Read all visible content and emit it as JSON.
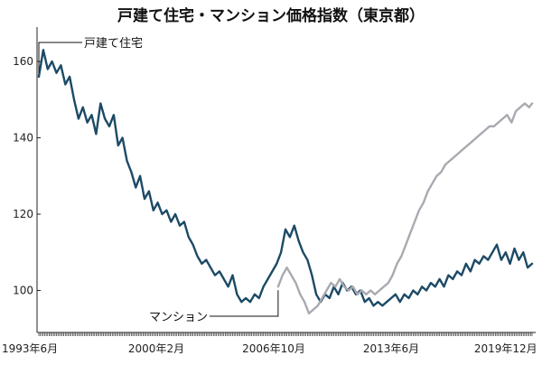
{
  "chart_data": {
    "type": "line",
    "title": "戸建て住宅・マンション価格指数（東京都）",
    "xlabel": "",
    "ylabel": "",
    "x_range": [
      "1993-06",
      "2021-06"
    ],
    "ylim": [
      89,
      169
    ],
    "y_ticks": [
      100,
      120,
      140,
      160
    ],
    "x_tick_labels": [
      {
        "label": "1993年6月",
        "date": "1993-06"
      },
      {
        "label": "2000年2月",
        "date": "2000-02"
      },
      {
        "label": "2006年10月",
        "date": "2006-10"
      },
      {
        "label": "2013年6月",
        "date": "2013-06"
      },
      {
        "label": "2019年12月",
        "date": "2019-12"
      }
    ],
    "grid": false,
    "legend": "inline labels",
    "series": [
      {
        "name": "戸建て住宅",
        "color": "#1c4a66",
        "points": [
          [
            "1993-06",
            156
          ],
          [
            "1993-09",
            163
          ],
          [
            "1993-12",
            158
          ],
          [
            "1994-03",
            160
          ],
          [
            "1994-06",
            157
          ],
          [
            "1994-09",
            159
          ],
          [
            "1994-12",
            154
          ],
          [
            "1995-03",
            156
          ],
          [
            "1995-06",
            150
          ],
          [
            "1995-09",
            145
          ],
          [
            "1995-12",
            148
          ],
          [
            "1996-03",
            144
          ],
          [
            "1996-06",
            146
          ],
          [
            "1996-09",
            141
          ],
          [
            "1996-12",
            149
          ],
          [
            "1997-03",
            145
          ],
          [
            "1997-06",
            143
          ],
          [
            "1997-09",
            146
          ],
          [
            "1997-12",
            138
          ],
          [
            "1998-03",
            140
          ],
          [
            "1998-06",
            134
          ],
          [
            "1998-09",
            131
          ],
          [
            "1998-12",
            127
          ],
          [
            "1999-03",
            130
          ],
          [
            "1999-06",
            124
          ],
          [
            "1999-09",
            126
          ],
          [
            "1999-12",
            121
          ],
          [
            "2000-03",
            123
          ],
          [
            "2000-06",
            120
          ],
          [
            "2000-09",
            121
          ],
          [
            "2000-12",
            118
          ],
          [
            "2001-03",
            120
          ],
          [
            "2001-06",
            117
          ],
          [
            "2001-09",
            118
          ],
          [
            "2001-12",
            114
          ],
          [
            "2002-03",
            112
          ],
          [
            "2002-06",
            109
          ],
          [
            "2002-09",
            107
          ],
          [
            "2002-12",
            108
          ],
          [
            "2003-03",
            106
          ],
          [
            "2003-06",
            104
          ],
          [
            "2003-09",
            105
          ],
          [
            "2003-12",
            103
          ],
          [
            "2004-03",
            101
          ],
          [
            "2004-06",
            104
          ],
          [
            "2004-09",
            99
          ],
          [
            "2004-12",
            97
          ],
          [
            "2005-03",
            98
          ],
          [
            "2005-06",
            97
          ],
          [
            "2005-09",
            99
          ],
          [
            "2005-12",
            98
          ],
          [
            "2006-03",
            101
          ],
          [
            "2006-06",
            103
          ],
          [
            "2006-09",
            105
          ],
          [
            "2006-12",
            107
          ],
          [
            "2007-03",
            110
          ],
          [
            "2007-06",
            116
          ],
          [
            "2007-09",
            114
          ],
          [
            "2007-12",
            117
          ],
          [
            "2008-03",
            113
          ],
          [
            "2008-06",
            110
          ],
          [
            "2008-09",
            108
          ],
          [
            "2008-12",
            104
          ],
          [
            "2009-03",
            99
          ],
          [
            "2009-06",
            97
          ],
          [
            "2009-09",
            99
          ],
          [
            "2009-12",
            98
          ],
          [
            "2010-03",
            101
          ],
          [
            "2010-06",
            99
          ],
          [
            "2010-09",
            102
          ],
          [
            "2010-12",
            100
          ],
          [
            "2011-03",
            101
          ],
          [
            "2011-06",
            99
          ],
          [
            "2011-09",
            100
          ],
          [
            "2011-12",
            97
          ],
          [
            "2012-03",
            98
          ],
          [
            "2012-06",
            96
          ],
          [
            "2012-09",
            97
          ],
          [
            "2012-12",
            96
          ],
          [
            "2013-03",
            97
          ],
          [
            "2013-06",
            98
          ],
          [
            "2013-09",
            99
          ],
          [
            "2013-12",
            97
          ],
          [
            "2014-03",
            99
          ],
          [
            "2014-06",
            98
          ],
          [
            "2014-09",
            100
          ],
          [
            "2014-12",
            99
          ],
          [
            "2015-03",
            101
          ],
          [
            "2015-06",
            100
          ],
          [
            "2015-09",
            102
          ],
          [
            "2015-12",
            101
          ],
          [
            "2016-03",
            103
          ],
          [
            "2016-06",
            101
          ],
          [
            "2016-09",
            104
          ],
          [
            "2016-12",
            103
          ],
          [
            "2017-03",
            105
          ],
          [
            "2017-06",
            104
          ],
          [
            "2017-09",
            107
          ],
          [
            "2017-12",
            105
          ],
          [
            "2018-03",
            108
          ],
          [
            "2018-06",
            107
          ],
          [
            "2018-09",
            109
          ],
          [
            "2018-12",
            108
          ],
          [
            "2019-03",
            110
          ],
          [
            "2019-06",
            112
          ],
          [
            "2019-09",
            108
          ],
          [
            "2019-12",
            110
          ],
          [
            "2020-03",
            107
          ],
          [
            "2020-06",
            111
          ],
          [
            "2020-09",
            108
          ],
          [
            "2020-12",
            110
          ],
          [
            "2021-03",
            106
          ],
          [
            "2021-06",
            107
          ]
        ]
      },
      {
        "name": "マンション",
        "color": "#a9a9b1",
        "points": [
          [
            "2007-01",
            101
          ],
          [
            "2007-04",
            104
          ],
          [
            "2007-07",
            106
          ],
          [
            "2007-10",
            104
          ],
          [
            "2008-01",
            102
          ],
          [
            "2008-04",
            99
          ],
          [
            "2008-07",
            97
          ],
          [
            "2008-10",
            94
          ],
          [
            "2009-01",
            95
          ],
          [
            "2009-04",
            96
          ],
          [
            "2009-07",
            98
          ],
          [
            "2009-10",
            100
          ],
          [
            "2010-01",
            102
          ],
          [
            "2010-04",
            101
          ],
          [
            "2010-07",
            103
          ],
          [
            "2010-10",
            101
          ],
          [
            "2011-01",
            100
          ],
          [
            "2011-04",
            101
          ],
          [
            "2011-07",
            99
          ],
          [
            "2011-10",
            100
          ],
          [
            "2012-01",
            99
          ],
          [
            "2012-04",
            100
          ],
          [
            "2012-07",
            99
          ],
          [
            "2012-10",
            100
          ],
          [
            "2013-01",
            101
          ],
          [
            "2013-04",
            102
          ],
          [
            "2013-07",
            104
          ],
          [
            "2013-10",
            107
          ],
          [
            "2014-01",
            109
          ],
          [
            "2014-04",
            112
          ],
          [
            "2014-07",
            115
          ],
          [
            "2014-10",
            118
          ],
          [
            "2015-01",
            121
          ],
          [
            "2015-04",
            123
          ],
          [
            "2015-07",
            126
          ],
          [
            "2015-10",
            128
          ],
          [
            "2016-01",
            130
          ],
          [
            "2016-04",
            131
          ],
          [
            "2016-07",
            133
          ],
          [
            "2016-10",
            134
          ],
          [
            "2017-01",
            135
          ],
          [
            "2017-04",
            136
          ],
          [
            "2017-07",
            137
          ],
          [
            "2017-10",
            138
          ],
          [
            "2018-01",
            139
          ],
          [
            "2018-04",
            140
          ],
          [
            "2018-07",
            141
          ],
          [
            "2018-10",
            142
          ],
          [
            "2019-01",
            143
          ],
          [
            "2019-04",
            143
          ],
          [
            "2019-07",
            144
          ],
          [
            "2019-10",
            145
          ],
          [
            "2020-01",
            146
          ],
          [
            "2020-04",
            144
          ],
          [
            "2020-07",
            147
          ],
          [
            "2020-10",
            148
          ],
          [
            "2021-01",
            149
          ],
          [
            "2021-04",
            148
          ],
          [
            "2021-06",
            149
          ]
        ]
      }
    ]
  }
}
